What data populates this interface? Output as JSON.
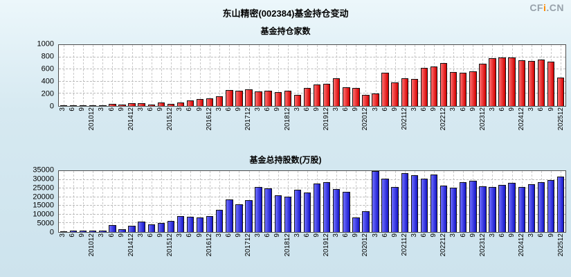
{
  "header": {
    "title": "东山精密(002384)基金持仓变动",
    "logo_cf": "CF",
    "logo_i": "i",
    "logo_cn": ".CN"
  },
  "colors": {
    "background": "#d6e9f1",
    "plot_background": "#ffffff",
    "grid": "#b8b8b8",
    "bar1": "#d40000",
    "bar1_light": "#ff7070",
    "bar2": "#1515c8",
    "bar2_light": "#7070ff",
    "logo_grey": "#98a2ab",
    "logo_orange": "#ff8a00"
  },
  "chart_data": [
    {
      "type": "bar",
      "title": "基金持仓家数",
      "xlabel": "",
      "ylabel": "",
      "ylim": [
        0,
        1000
      ],
      "yticks": [
        0,
        200,
        400,
        600,
        800,
        1000
      ],
      "grid": true,
      "legend": "none",
      "bar_color": "#d40000",
      "bar_color_light": "#ff7070",
      "categories": [
        "3",
        "6",
        "9",
        "201012",
        "3",
        "6",
        "9",
        "201412",
        "3",
        "6",
        "9",
        "201512",
        "3",
        "6",
        "9",
        "201612",
        "3",
        "6",
        "9",
        "201712",
        "3",
        "6",
        "9",
        "201812",
        "3",
        "6",
        "9",
        "201912",
        "3",
        "6",
        "9",
        "202012",
        "3",
        "6",
        "9",
        "202112",
        "3",
        "6",
        "9",
        "202212",
        "3",
        "6",
        "9",
        "202312",
        "3",
        "6",
        "9",
        "202412",
        "3",
        "6",
        "9",
        "202512"
      ],
      "values": [
        5,
        5,
        5,
        8,
        15,
        35,
        20,
        40,
        45,
        25,
        55,
        35,
        60,
        95,
        110,
        130,
        155,
        260,
        250,
        270,
        235,
        255,
        230,
        250,
        185,
        290,
        350,
        360,
        450,
        305,
        300,
        185,
        205,
        540,
        385,
        450,
        440,
        620,
        650,
        700,
        560,
        550,
        565,
        690,
        780,
        800,
        790,
        745,
        740,
        760,
        730,
        470
      ]
    },
    {
      "type": "bar",
      "title": "基金总持股数(万股)",
      "xlabel": "",
      "ylabel": "",
      "ylim": [
        0,
        35000
      ],
      "yticks": [
        0,
        5000,
        10000,
        15000,
        20000,
        25000,
        30000,
        35000
      ],
      "grid": true,
      "legend": "none",
      "bar_color": "#1515c8",
      "bar_color_light": "#7070ff",
      "categories": [
        "3",
        "6",
        "9",
        "201012",
        "3",
        "6",
        "9",
        "201412",
        "3",
        "6",
        "9",
        "201512",
        "3",
        "6",
        "9",
        "201612",
        "3",
        "6",
        "9",
        "201712",
        "3",
        "6",
        "9",
        "201812",
        "3",
        "6",
        "9",
        "201912",
        "3",
        "6",
        "9",
        "202012",
        "3",
        "6",
        "9",
        "202112",
        "3",
        "6",
        "9",
        "202212",
        "3",
        "6",
        "9",
        "202312",
        "3",
        "6",
        "9",
        "202412",
        "3",
        "6",
        "9",
        "202512"
      ],
      "values": [
        600,
        800,
        700,
        900,
        1000,
        3800,
        1500,
        3500,
        5800,
        4200,
        5300,
        6500,
        9200,
        8800,
        8300,
        9000,
        12800,
        18800,
        16000,
        18200,
        25800,
        25200,
        21000,
        20300,
        24300,
        22600,
        27800,
        28700,
        24600,
        23200,
        8200,
        11800,
        35000,
        30500,
        25700,
        33800,
        32700,
        30700,
        33200,
        26700,
        25600,
        28700,
        29600,
        26200,
        25700,
        27200,
        28200,
        25900,
        27400,
        28600,
        29700,
        31700
      ]
    }
  ]
}
